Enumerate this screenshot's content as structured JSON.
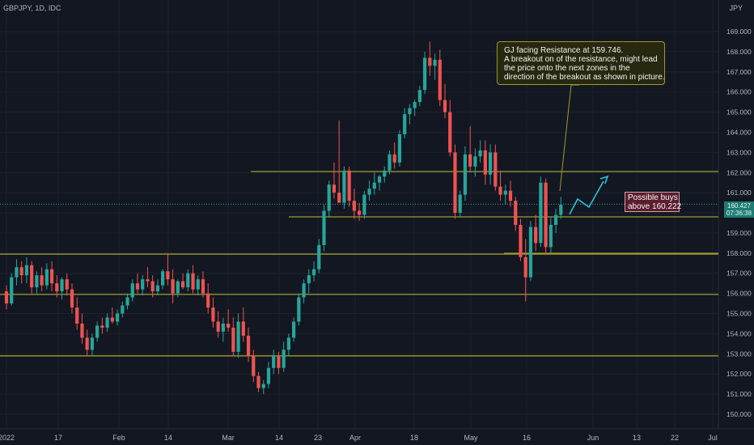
{
  "header": {
    "symbol": "GBPJPY, 1D, IDC",
    "currency": "JPY"
  },
  "price_tag": {
    "price": "160.427",
    "countdown": "07:36:38"
  },
  "callout": {
    "lines": [
      "GJ facing Resistance at 159.746.",
      "A breakout on of the resistance, might lead",
      "the price onto the next zones in the",
      "direction of the breakout as shown in picture."
    ]
  },
  "buys_label": {
    "lines": [
      "Possible buys",
      "above 160.222"
    ]
  },
  "colors": {
    "background": "#131722",
    "grid": "#1e222d",
    "axis_text": "#b2b5be",
    "up": "#26a69a",
    "down": "#ef5350",
    "level": "#9b9b2e",
    "arrow": "#26c6da",
    "buys_bg": "#5c1d2c"
  },
  "chart_data": {
    "type": "candlestick",
    "title": "GBPJPY, 1D, IDC",
    "y_axis": {
      "unit": "JPY",
      "ylim": [
        149.5,
        170.1
      ],
      "ticks": [
        150,
        151,
        152,
        153,
        154,
        155,
        156,
        157,
        158,
        159,
        160,
        161,
        162,
        163,
        164,
        165,
        166,
        167,
        168,
        169
      ]
    },
    "x_axis": {
      "ticks": [
        "2022",
        "17",
        "Feb",
        "14",
        "Mar",
        "14",
        "23",
        "Apr",
        "18",
        "May",
        "16",
        "Jun",
        "13",
        "22",
        "Jul"
      ]
    },
    "grid": true,
    "last_price": 160.427,
    "horizontal_levels": [
      162.05,
      159.8,
      157.95,
      155.95,
      152.9
    ],
    "ohlc": [
      [
        156.1,
        156.4,
        155.2,
        155.5
      ],
      [
        155.5,
        157.0,
        155.4,
        156.8
      ],
      [
        156.8,
        157.7,
        156.4,
        157.3
      ],
      [
        157.3,
        157.6,
        156.5,
        156.9
      ],
      [
        156.9,
        157.8,
        156.5,
        157.4
      ],
      [
        157.4,
        157.6,
        156.0,
        156.3
      ],
      [
        156.3,
        157.1,
        156.0,
        156.9
      ],
      [
        156.9,
        157.3,
        156.1,
        156.4
      ],
      [
        156.4,
        157.5,
        156.2,
        157.2
      ],
      [
        157.2,
        157.6,
        156.1,
        156.5
      ],
      [
        156.5,
        156.9,
        155.8,
        156.1
      ],
      [
        156.1,
        156.8,
        155.7,
        156.7
      ],
      [
        156.7,
        157.0,
        155.9,
        156.2
      ],
      [
        156.2,
        156.5,
        155.0,
        155.3
      ],
      [
        155.3,
        155.8,
        154.2,
        154.5
      ],
      [
        154.5,
        155.0,
        153.5,
        153.8
      ],
      [
        153.8,
        154.2,
        152.9,
        153.2
      ],
      [
        153.2,
        154.0,
        152.9,
        153.8
      ],
      [
        153.8,
        154.6,
        153.6,
        154.4
      ],
      [
        154.4,
        154.8,
        154.0,
        154.3
      ],
      [
        154.3,
        155.0,
        154.1,
        154.8
      ],
      [
        154.8,
        155.3,
        154.5,
        154.6
      ],
      [
        154.6,
        155.2,
        154.4,
        155.0
      ],
      [
        155.0,
        155.6,
        154.8,
        155.4
      ],
      [
        155.4,
        156.0,
        155.2,
        155.8
      ],
      [
        155.8,
        156.7,
        155.6,
        156.5
      ],
      [
        156.5,
        157.0,
        156.0,
        156.2
      ],
      [
        156.2,
        156.9,
        155.9,
        156.7
      ],
      [
        156.7,
        157.3,
        156.3,
        156.6
      ],
      [
        156.6,
        156.9,
        155.8,
        156.1
      ],
      [
        156.1,
        156.7,
        155.9,
        156.4
      ],
      [
        156.4,
        157.2,
        156.2,
        157.1
      ],
      [
        157.1,
        158.0,
        156.4,
        156.7
      ],
      [
        156.7,
        157.2,
        155.5,
        156.0
      ],
      [
        156.0,
        156.7,
        155.8,
        156.6
      ],
      [
        156.6,
        157.0,
        156.2,
        156.3
      ],
      [
        156.3,
        157.2,
        156.1,
        157.0
      ],
      [
        157.0,
        157.4,
        156.0,
        156.2
      ],
      [
        156.2,
        156.9,
        155.9,
        156.7
      ],
      [
        156.7,
        157.1,
        155.8,
        156.0
      ],
      [
        156.0,
        156.5,
        155.0,
        155.3
      ],
      [
        155.3,
        155.8,
        154.3,
        154.6
      ],
      [
        154.6,
        155.1,
        153.8,
        154.1
      ],
      [
        154.1,
        154.8,
        153.6,
        154.5
      ],
      [
        154.5,
        155.2,
        154.1,
        154.3
      ],
      [
        154.3,
        154.8,
        152.9,
        153.1
      ],
      [
        153.1,
        155.0,
        152.8,
        154.6
      ],
      [
        154.6,
        155.3,
        153.6,
        153.9
      ],
      [
        153.9,
        154.3,
        152.6,
        152.9
      ],
      [
        152.9,
        153.2,
        151.6,
        151.9
      ],
      [
        151.9,
        152.1,
        151.1,
        151.3
      ],
      [
        151.3,
        151.7,
        151.0,
        151.5
      ],
      [
        151.5,
        152.6,
        151.3,
        152.3
      ],
      [
        152.3,
        153.2,
        152.0,
        152.9
      ],
      [
        152.9,
        153.1,
        152.0,
        152.3
      ],
      [
        152.3,
        153.6,
        152.1,
        153.2
      ],
      [
        153.2,
        154.0,
        152.9,
        153.8
      ],
      [
        153.8,
        154.8,
        153.6,
        154.6
      ],
      [
        154.6,
        156.0,
        154.4,
        155.8
      ],
      [
        155.8,
        156.7,
        155.5,
        156.5
      ],
      [
        156.5,
        157.2,
        156.0,
        156.9
      ],
      [
        156.9,
        157.6,
        156.6,
        157.2
      ],
      [
        157.2,
        158.7,
        157.0,
        158.4
      ],
      [
        158.4,
        160.4,
        158.1,
        160.1
      ],
      [
        160.1,
        161.6,
        159.8,
        161.4
      ],
      [
        161.4,
        162.5,
        160.7,
        161.0
      ],
      [
        161.0,
        164.6,
        160.6,
        160.5
      ],
      [
        160.5,
        162.3,
        160.2,
        162.1
      ],
      [
        162.1,
        162.3,
        160.3,
        160.6
      ],
      [
        160.6,
        161.2,
        159.7,
        160.1
      ],
      [
        160.1,
        160.5,
        159.6,
        159.9
      ],
      [
        159.9,
        161.1,
        159.7,
        160.9
      ],
      [
        160.9,
        161.6,
        160.6,
        161.2
      ],
      [
        161.2,
        162.0,
        160.9,
        161.5
      ],
      [
        161.5,
        161.9,
        161.1,
        161.8
      ],
      [
        161.8,
        162.3,
        161.5,
        162.1
      ],
      [
        162.1,
        163.1,
        161.9,
        162.9
      ],
      [
        162.9,
        163.5,
        162.2,
        162.5
      ],
      [
        162.5,
        164.1,
        162.3,
        163.9
      ],
      [
        163.9,
        165.2,
        163.7,
        164.9
      ],
      [
        164.9,
        165.4,
        164.4,
        165.2
      ],
      [
        165.2,
        165.6,
        164.8,
        165.5
      ],
      [
        165.5,
        166.3,
        165.3,
        166.1
      ],
      [
        166.1,
        168.0,
        165.9,
        167.7
      ],
      [
        167.7,
        168.5,
        166.8,
        167.3
      ],
      [
        167.3,
        167.9,
        166.6,
        167.6
      ],
      [
        167.6,
        168.1,
        165.3,
        165.6
      ],
      [
        165.6,
        166.4,
        164.7,
        165.0
      ],
      [
        165.0,
        165.6,
        162.8,
        163.0
      ],
      [
        163.0,
        163.4,
        159.7,
        160.0
      ],
      [
        160.0,
        161.1,
        159.8,
        160.9
      ],
      [
        160.9,
        163.3,
        160.6,
        162.9
      ],
      [
        162.9,
        164.3,
        162.0,
        162.3
      ],
      [
        162.3,
        163.2,
        161.8,
        162.8
      ],
      [
        162.8,
        163.6,
        162.5,
        163.1
      ],
      [
        163.1,
        163.6,
        161.4,
        161.9
      ],
      [
        161.9,
        163.4,
        161.4,
        163.0
      ],
      [
        163.0,
        163.4,
        161.1,
        161.3
      ],
      [
        161.3,
        162.1,
        160.6,
        160.9
      ],
      [
        160.9,
        161.4,
        160.4,
        161.1
      ],
      [
        161.1,
        161.6,
        160.3,
        160.6
      ],
      [
        160.6,
        160.8,
        159.1,
        159.4
      ],
      [
        159.4,
        159.7,
        157.6,
        157.8
      ],
      [
        157.8,
        158.7,
        155.6,
        156.8
      ],
      [
        156.8,
        159.6,
        156.6,
        159.3
      ],
      [
        159.3,
        159.9,
        158.1,
        158.5
      ],
      [
        158.5,
        161.8,
        158.3,
        161.5
      ],
      [
        161.5,
        161.7,
        157.9,
        158.3
      ],
      [
        158.3,
        159.8,
        158.0,
        159.4
      ],
      [
        159.4,
        160.2,
        159.0,
        159.9
      ],
      [
        159.9,
        160.8,
        159.7,
        160.4
      ]
    ]
  }
}
